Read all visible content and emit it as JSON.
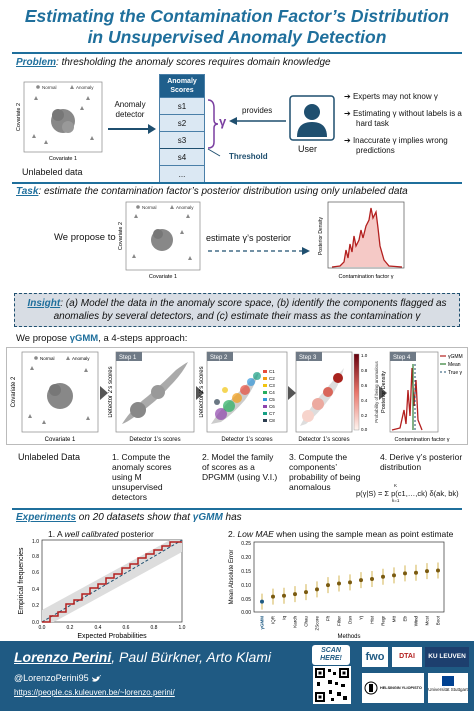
{
  "title_line1": "Estimating the Contamination Factor’s Distribution",
  "title_line2": "in Unsupervised Anomaly Detection",
  "problem": {
    "keyword": "Problem",
    "text": ": thresholding the anomaly scores requires domain knowledge",
    "legend_normal": "Normal",
    "legend_anomaly": "Anomaly",
    "xlabel": "Covariate 1",
    "ylabel": "Covariate 2",
    "caption": "Unlabeled data",
    "detector_label": "Anomaly detector",
    "scores_header": "Anomaly Scores",
    "scores": [
      "s1",
      "s2",
      "s3",
      "s4",
      "..."
    ],
    "gamma": "γ",
    "provides": "provides",
    "threshold": "Threshold",
    "user": "User",
    "bullets": [
      "Experts may not know γ",
      "Estimating γ without labels is a hard task",
      "Inaccurate γ implies wrong predictions"
    ]
  },
  "task": {
    "keyword": "Task",
    "text": ": estimate the contamination factor’s posterior distribution using only unlabeled data",
    "we_propose": "We propose to",
    "estimate": "estimate γ’s posterior",
    "legend_normal": "Normal",
    "legend_anomaly": "Anomaly",
    "xlabel": "Covariate 1",
    "ylabel": "Covariate 2",
    "post_ylabel": "Posterior Density",
    "post_xlabel": "Contamination factor γ"
  },
  "insight": {
    "keyword": "Insight",
    "text": ": (a) Model the data in the anomaly score space, (b) identify the components flagged as anomalies by several detectors, and (c) estimate their mass as the contamination γ"
  },
  "approach": {
    "intro_pre": "We propose ",
    "method": "γGMM",
    "intro_post": ", a 4-steps approach:",
    "legend_normal": "Normal",
    "legend_anomaly": "Anomaly",
    "xlabel0": "Covariate 1",
    "ylabel0": "Covariate 2",
    "step_labels": [
      "Step 1",
      "Step 2",
      "Step 3",
      "Step 4"
    ],
    "det_x": "Detector 1’s scores",
    "det_y": "Detector 2’s scores",
    "comp_labels": [
      "C1",
      "C2",
      "C3",
      "C4",
      "C5",
      "C6",
      "C7",
      "C8"
    ],
    "prob_label": "Probability of being anomalous",
    "colorbar_ticks": [
      "1.0",
      "0.8",
      "0.6",
      "0.4",
      "0.2",
      "0.0"
    ],
    "post_ylabel": "Posterior Density",
    "post_xlabel": "Contamination factor γ",
    "step4_legend": [
      "γGMM",
      "Mean",
      "True γ"
    ],
    "captions": [
      "Unlabeled Data",
      "1. Compute the anomaly scores using M unsupervised detectors",
      "2. Model the family of scores as a DPGMM (using V.I.)",
      "3. Compute the components’ probability of being anomalous",
      "4. Derive γ’s posterior distribution"
    ],
    "formula": "p(γ|S) = Σ p(c1,…,ck) δ(ak, bk)",
    "formula_sub": "k=1",
    "formula_sup": "K"
  },
  "experiments": {
    "keyword": "Experiments",
    "text_pre": " on 20 datasets show that ",
    "method": "γGMM",
    "text_post": " has",
    "plot1_title_pre": "1. A ",
    "plot1_title_em": "well calibrated",
    "plot1_title_post": " posterior",
    "plot1_xlabel": "Expected Probabilities",
    "plot1_ylabel": "Empirical frequencies",
    "plot1_ticks": [
      "0.0",
      "0.2",
      "0.4",
      "0.6",
      "0.8",
      "1.0"
    ],
    "plot2_title_pre": "2. ",
    "plot2_title_em": "Low MAE",
    "plot2_title_post": " when using the sample mean as point estimate",
    "plot2_ylabel": "Mean Absolute Error",
    "plot2_xlabel": "Methods",
    "plot2_yticks": [
      "0.25",
      "0.20",
      "0.15",
      "0.10",
      "0.05",
      "0.00"
    ],
    "methods": [
      "γGMM",
      "IQR",
      "Iq",
      "Karch",
      "Chau",
      "ZScore",
      "Fft",
      "Filter",
      "Dsn",
      "Yj",
      "Hist",
      "Regr",
      "Mtt",
      "Eb",
      "Wind",
      "Mcst",
      "Boot"
    ],
    "mae": [
      0.037,
      0.055,
      0.058,
      0.064,
      0.071,
      0.081,
      0.096,
      0.102,
      0.106,
      0.114,
      0.118,
      0.126,
      0.131,
      0.138,
      0.14,
      0.146,
      0.148
    ]
  },
  "footer": {
    "authors": "Lorenzo Perini, Paul Bürkner, Arto Klami",
    "first_author": "Lorenzo Perini",
    "other_authors": ", Paul Bürkner, Arto Klami",
    "handle": "@LorenzoPerini95",
    "url": "https://people.cs.kuleuven.be/~lorenzo.perini/",
    "scan": "SCAN HERE!",
    "logos": [
      "fwo",
      "DTAI",
      "KU LEUVEN",
      "HELSINGIN YLIOPISTO",
      "Universität Stuttgart"
    ]
  },
  "colors": {
    "accent": "#1f6f9c",
    "footer": "#1f5a83",
    "red": "#b3201f",
    "green": "#2e7d32"
  }
}
